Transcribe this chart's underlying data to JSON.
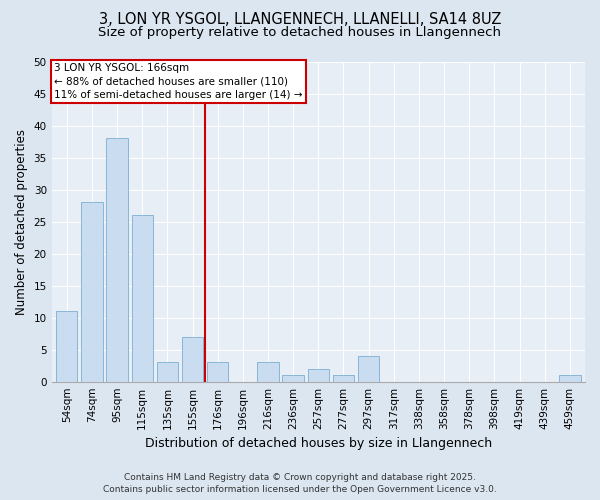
{
  "title1": "3, LON YR YSGOL, LLANGENNECH, LLANELLI, SA14 8UZ",
  "title2": "Size of property relative to detached houses in Llangennech",
  "xlabel": "Distribution of detached houses by size in Llangennech",
  "ylabel": "Number of detached properties",
  "categories": [
    "54sqm",
    "74sqm",
    "95sqm",
    "115sqm",
    "135sqm",
    "155sqm",
    "176sqm",
    "196sqm",
    "216sqm",
    "236sqm",
    "257sqm",
    "277sqm",
    "297sqm",
    "317sqm",
    "338sqm",
    "358sqm",
    "378sqm",
    "398sqm",
    "419sqm",
    "439sqm",
    "459sqm"
  ],
  "values": [
    11,
    28,
    38,
    26,
    3,
    7,
    3,
    0,
    3,
    1,
    2,
    1,
    4,
    0,
    0,
    0,
    0,
    0,
    0,
    0,
    1
  ],
  "bar_color": "#c9dcf0",
  "bar_edge_color": "#7bafd4",
  "vline_x": 5.5,
  "vline_color": "#cc0000",
  "annotation_line1": "3 LON YR YSGOL: 166sqm",
  "annotation_line2": "← 88% of detached houses are smaller (110)",
  "annotation_line3": "11% of semi-detached houses are larger (14) →",
  "annotation_box_edge": "#cc0000",
  "annotation_box_fill": "#ffffff",
  "ylim": [
    0,
    50
  ],
  "yticks": [
    0,
    5,
    10,
    15,
    20,
    25,
    30,
    35,
    40,
    45,
    50
  ],
  "fig_bg": "#dce6f0",
  "plot_bg": "#e8eef6",
  "footer_line1": "Contains HM Land Registry data © Crown copyright and database right 2025.",
  "footer_line2": "Contains public sector information licensed under the Open Government Licence v3.0.",
  "title1_fontsize": 10.5,
  "title2_fontsize": 9.5,
  "xlabel_fontsize": 9,
  "ylabel_fontsize": 8.5,
  "tick_fontsize": 7.5,
  "annotation_fontsize": 7.5,
  "footer_fontsize": 6.5
}
